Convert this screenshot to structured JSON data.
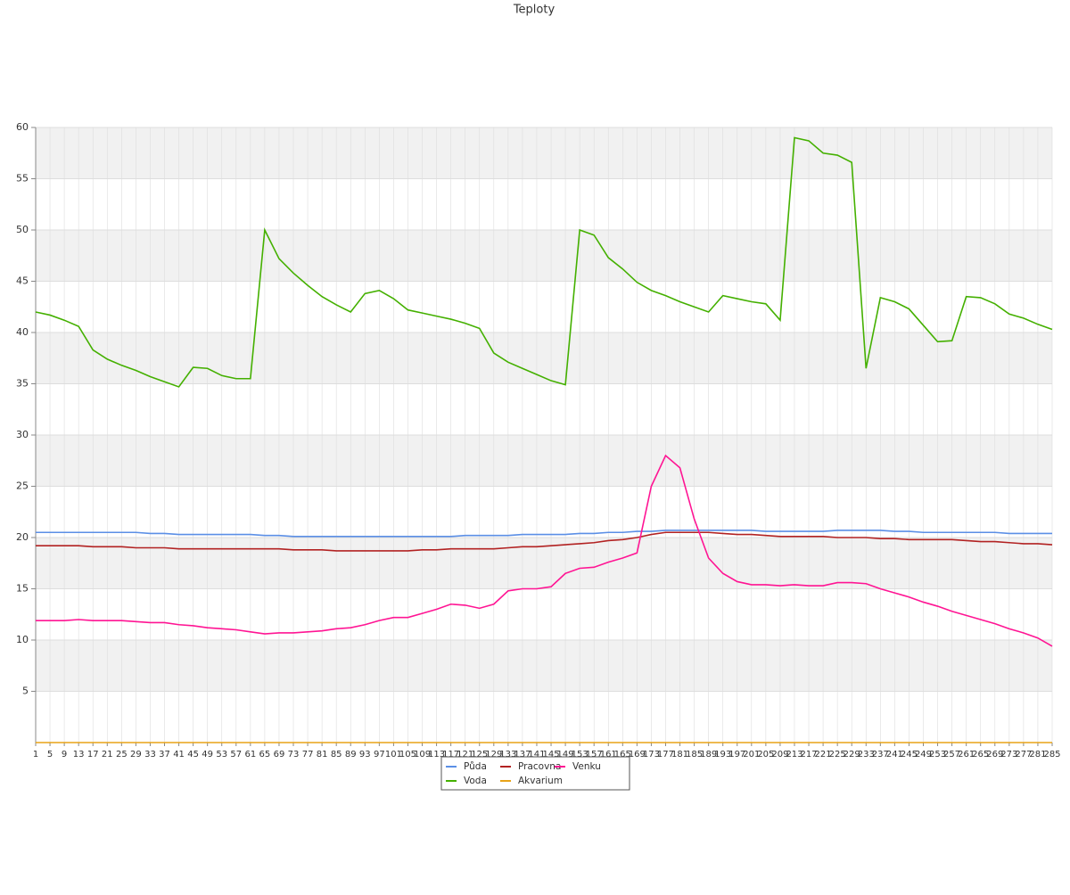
{
  "chart_data": {
    "type": "line",
    "title": "Teploty",
    "x": [
      1,
      5,
      9,
      13,
      17,
      21,
      25,
      29,
      33,
      37,
      41,
      45,
      49,
      53,
      57,
      61,
      65,
      69,
      73,
      77,
      81,
      85,
      89,
      93,
      97,
      101,
      105,
      109,
      113,
      117,
      121,
      125,
      129,
      133,
      137,
      141,
      145,
      149,
      153,
      157,
      161,
      165,
      169,
      173,
      177,
      181,
      185,
      189,
      193,
      197,
      201,
      205,
      209,
      213,
      217,
      221,
      225,
      229,
      233,
      237,
      241,
      245,
      249,
      253,
      257,
      261,
      265,
      269,
      273,
      277,
      281,
      285
    ],
    "xlim": [
      1,
      285
    ],
    "ylim": [
      0,
      60
    ],
    "yticks": [
      5,
      10,
      15,
      20,
      25,
      30,
      35,
      40,
      45,
      50,
      55,
      60
    ],
    "grid": true,
    "series": [
      {
        "name": "Půda",
        "color": "#5b8fe6",
        "values": [
          20.5,
          20.5,
          20.5,
          20.5,
          20.5,
          20.5,
          20.5,
          20.5,
          20.4,
          20.4,
          20.3,
          20.3,
          20.3,
          20.3,
          20.3,
          20.3,
          20.2,
          20.2,
          20.1,
          20.1,
          20.1,
          20.1,
          20.1,
          20.1,
          20.1,
          20.1,
          20.1,
          20.1,
          20.1,
          20.1,
          20.2,
          20.2,
          20.2,
          20.2,
          20.3,
          20.3,
          20.3,
          20.3,
          20.4,
          20.4,
          20.5,
          20.5,
          20.6,
          20.6,
          20.7,
          20.7,
          20.7,
          20.7,
          20.7,
          20.7,
          20.7,
          20.6,
          20.6,
          20.6,
          20.6,
          20.6,
          20.7,
          20.7,
          20.7,
          20.7,
          20.6,
          20.6,
          20.5,
          20.5,
          20.5,
          20.5,
          20.5,
          20.5,
          20.4,
          20.4,
          20.4,
          20.4
        ]
      },
      {
        "name": "Voda",
        "color": "#44b000",
        "values": [
          42.0,
          41.7,
          41.2,
          40.6,
          38.3,
          37.4,
          36.8,
          36.3,
          35.7,
          35.2,
          34.7,
          36.6,
          36.5,
          35.8,
          35.5,
          35.5,
          50.0,
          47.2,
          45.8,
          44.6,
          43.5,
          42.7,
          42.0,
          43.8,
          44.1,
          43.3,
          42.2,
          41.9,
          41.6,
          41.3,
          40.9,
          40.4,
          38.0,
          37.1,
          36.5,
          35.9,
          35.3,
          34.9,
          50.0,
          49.5,
          47.3,
          46.2,
          44.9,
          44.1,
          43.6,
          43.0,
          42.5,
          42.0,
          43.6,
          43.3,
          43.0,
          42.8,
          41.2,
          59.0,
          58.7,
          57.5,
          57.3,
          56.6,
          36.5,
          43.4,
          43.0,
          42.3,
          40.7,
          39.1,
          39.2,
          43.5,
          43.4,
          42.8,
          41.8,
          41.4,
          40.8,
          40.3
        ]
      },
      {
        "name": "Pracovna",
        "color": "#b22222",
        "values": [
          19.2,
          19.2,
          19.2,
          19.2,
          19.1,
          19.1,
          19.1,
          19.0,
          19.0,
          19.0,
          18.9,
          18.9,
          18.9,
          18.9,
          18.9,
          18.9,
          18.9,
          18.9,
          18.8,
          18.8,
          18.8,
          18.7,
          18.7,
          18.7,
          18.7,
          18.7,
          18.7,
          18.8,
          18.8,
          18.9,
          18.9,
          18.9,
          18.9,
          19.0,
          19.1,
          19.1,
          19.2,
          19.3,
          19.4,
          19.5,
          19.7,
          19.8,
          20.0,
          20.3,
          20.5,
          20.5,
          20.5,
          20.5,
          20.4,
          20.3,
          20.3,
          20.2,
          20.1,
          20.1,
          20.1,
          20.1,
          20.0,
          20.0,
          20.0,
          19.9,
          19.9,
          19.8,
          19.8,
          19.8,
          19.8,
          19.7,
          19.6,
          19.6,
          19.5,
          19.4,
          19.4,
          19.3
        ]
      },
      {
        "name": "Akvarium",
        "color": "#e8a317",
        "values": [
          0,
          0,
          0,
          0,
          0,
          0,
          0,
          0,
          0,
          0,
          0,
          0,
          0,
          0,
          0,
          0,
          0,
          0,
          0,
          0,
          0,
          0,
          0,
          0,
          0,
          0,
          0,
          0,
          0,
          0,
          0,
          0,
          0,
          0,
          0,
          0,
          0,
          0,
          0,
          0,
          0,
          0,
          0,
          0,
          0,
          0,
          0,
          0,
          0,
          0,
          0,
          0,
          0,
          0,
          0,
          0,
          0,
          0,
          0,
          0,
          0,
          0,
          0,
          0,
          0,
          0,
          0,
          0,
          0,
          0,
          0,
          0
        ]
      },
      {
        "name": "Venku",
        "color": "#ff1493",
        "values": [
          11.9,
          11.9,
          11.9,
          12.0,
          11.9,
          11.9,
          11.9,
          11.8,
          11.7,
          11.7,
          11.5,
          11.4,
          11.2,
          11.1,
          11.0,
          10.8,
          10.6,
          10.7,
          10.7,
          10.8,
          10.9,
          11.1,
          11.2,
          11.5,
          11.9,
          12.2,
          12.2,
          12.6,
          13.0,
          13.5,
          13.4,
          13.1,
          13.5,
          14.8,
          15.0,
          15.0,
          15.2,
          16.5,
          17.0,
          17.1,
          17.6,
          18.0,
          18.5,
          25.0,
          28.0,
          26.8,
          21.8,
          18.0,
          16.5,
          15.7,
          15.4,
          15.4,
          15.3,
          15.4,
          15.3,
          15.3,
          15.6,
          15.6,
          15.5,
          15.0,
          14.6,
          14.2,
          13.7,
          13.3,
          12.8,
          12.4,
          12.0,
          11.6,
          11.1,
          10.7,
          10.2,
          9.4
        ]
      }
    ]
  }
}
